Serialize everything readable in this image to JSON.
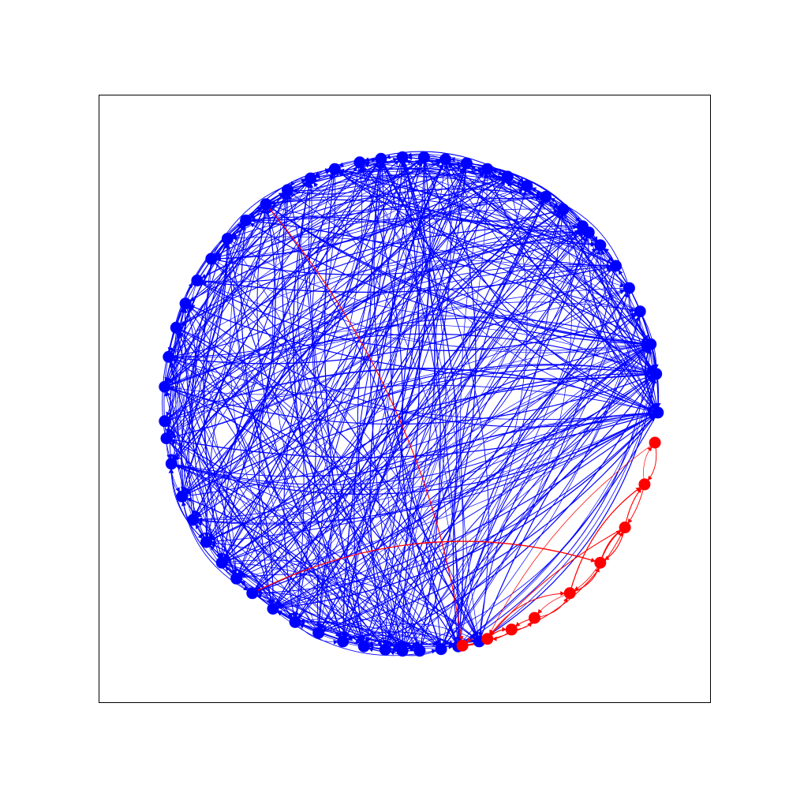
{
  "colors": {
    "background": "#ffffff",
    "frame": "#000000",
    "group_a": "#0000ff",
    "group_b": "#ff0000"
  },
  "graph": {
    "type": "directed-network",
    "layout": "circular",
    "axes_frame": true,
    "ticks": false,
    "groups": [
      {
        "id": "group_a",
        "color": "#0000ff",
        "node_count": 52
      },
      {
        "id": "group_b",
        "color": "#ff0000",
        "node_count": 9
      }
    ]
  }
}
